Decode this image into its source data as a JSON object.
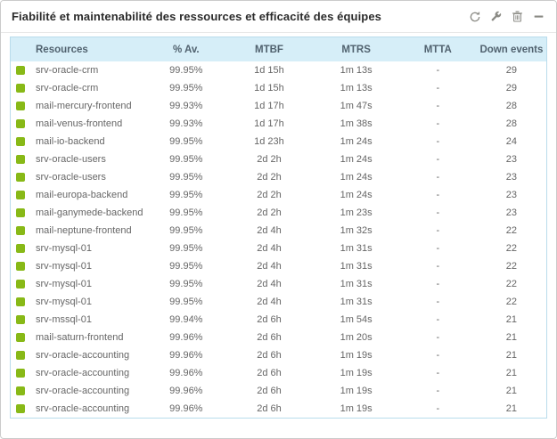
{
  "widget": {
    "title": "Fiabilité et maintenabilité des ressources et efficacité des équipes",
    "toolbar_icons": [
      {
        "name": "refresh"
      },
      {
        "name": "configure-wrench"
      },
      {
        "name": "delete-trash"
      },
      {
        "name": "minimize"
      }
    ]
  },
  "colors": {
    "status_ok": "#88b917",
    "icon_gray": "#8b8b85",
    "header_bg": "#d6eef8",
    "table_border": "#b9dcec"
  },
  "table": {
    "columns": [
      "Resources",
      "% Av.",
      "MTBF",
      "MTRS",
      "MTTA",
      "Down events"
    ],
    "rows": [
      {
        "status": "ok",
        "resource": "srv-oracle-crm",
        "availability": "99.95%",
        "mtbf": "1d 15h",
        "mtrs": "1m 13s",
        "mtta": "-",
        "down_events": "29"
      },
      {
        "status": "ok",
        "resource": "srv-oracle-crm",
        "availability": "99.95%",
        "mtbf": "1d 15h",
        "mtrs": "1m 13s",
        "mtta": "-",
        "down_events": "29"
      },
      {
        "status": "ok",
        "resource": "mail-mercury-frontend",
        "availability": "99.93%",
        "mtbf": "1d 17h",
        "mtrs": "1m 47s",
        "mtta": "-",
        "down_events": "28"
      },
      {
        "status": "ok",
        "resource": "mail-venus-frontend",
        "availability": "99.93%",
        "mtbf": "1d 17h",
        "mtrs": "1m 38s",
        "mtta": "-",
        "down_events": "28"
      },
      {
        "status": "ok",
        "resource": "mail-io-backend",
        "availability": "99.95%",
        "mtbf": "1d 23h",
        "mtrs": "1m 24s",
        "mtta": "-",
        "down_events": "24"
      },
      {
        "status": "ok",
        "resource": "srv-oracle-users",
        "availability": "99.95%",
        "mtbf": "2d 2h",
        "mtrs": "1m 24s",
        "mtta": "-",
        "down_events": "23"
      },
      {
        "status": "ok",
        "resource": "srv-oracle-users",
        "availability": "99.95%",
        "mtbf": "2d 2h",
        "mtrs": "1m 24s",
        "mtta": "-",
        "down_events": "23"
      },
      {
        "status": "ok",
        "resource": "mail-europa-backend",
        "availability": "99.95%",
        "mtbf": "2d 2h",
        "mtrs": "1m 24s",
        "mtta": "-",
        "down_events": "23"
      },
      {
        "status": "ok",
        "resource": "mail-ganymede-backend",
        "availability": "99.95%",
        "mtbf": "2d 2h",
        "mtrs": "1m 23s",
        "mtta": "-",
        "down_events": "23"
      },
      {
        "status": "ok",
        "resource": "mail-neptune-frontend",
        "availability": "99.95%",
        "mtbf": "2d 4h",
        "mtrs": "1m 32s",
        "mtta": "-",
        "down_events": "22"
      },
      {
        "status": "ok",
        "resource": "srv-mysql-01",
        "availability": "99.95%",
        "mtbf": "2d 4h",
        "mtrs": "1m 31s",
        "mtta": "-",
        "down_events": "22"
      },
      {
        "status": "ok",
        "resource": "srv-mysql-01",
        "availability": "99.95%",
        "mtbf": "2d 4h",
        "mtrs": "1m 31s",
        "mtta": "-",
        "down_events": "22"
      },
      {
        "status": "ok",
        "resource": "srv-mysql-01",
        "availability": "99.95%",
        "mtbf": "2d 4h",
        "mtrs": "1m 31s",
        "mtta": "-",
        "down_events": "22"
      },
      {
        "status": "ok",
        "resource": "srv-mysql-01",
        "availability": "99.95%",
        "mtbf": "2d 4h",
        "mtrs": "1m 31s",
        "mtta": "-",
        "down_events": "22"
      },
      {
        "status": "ok",
        "resource": "srv-mssql-01",
        "availability": "99.94%",
        "mtbf": "2d 6h",
        "mtrs": "1m 54s",
        "mtta": "-",
        "down_events": "21"
      },
      {
        "status": "ok",
        "resource": "mail-saturn-frontend",
        "availability": "99.96%",
        "mtbf": "2d 6h",
        "mtrs": "1m 20s",
        "mtta": "-",
        "down_events": "21"
      },
      {
        "status": "ok",
        "resource": "srv-oracle-accounting",
        "availability": "99.96%",
        "mtbf": "2d 6h",
        "mtrs": "1m 19s",
        "mtta": "-",
        "down_events": "21"
      },
      {
        "status": "ok",
        "resource": "srv-oracle-accounting",
        "availability": "99.96%",
        "mtbf": "2d 6h",
        "mtrs": "1m 19s",
        "mtta": "-",
        "down_events": "21"
      },
      {
        "status": "ok",
        "resource": "srv-oracle-accounting",
        "availability": "99.96%",
        "mtbf": "2d 6h",
        "mtrs": "1m 19s",
        "mtta": "-",
        "down_events": "21"
      },
      {
        "status": "ok",
        "resource": "srv-oracle-accounting",
        "availability": "99.96%",
        "mtbf": "2d 6h",
        "mtrs": "1m 19s",
        "mtta": "-",
        "down_events": "21"
      }
    ]
  }
}
